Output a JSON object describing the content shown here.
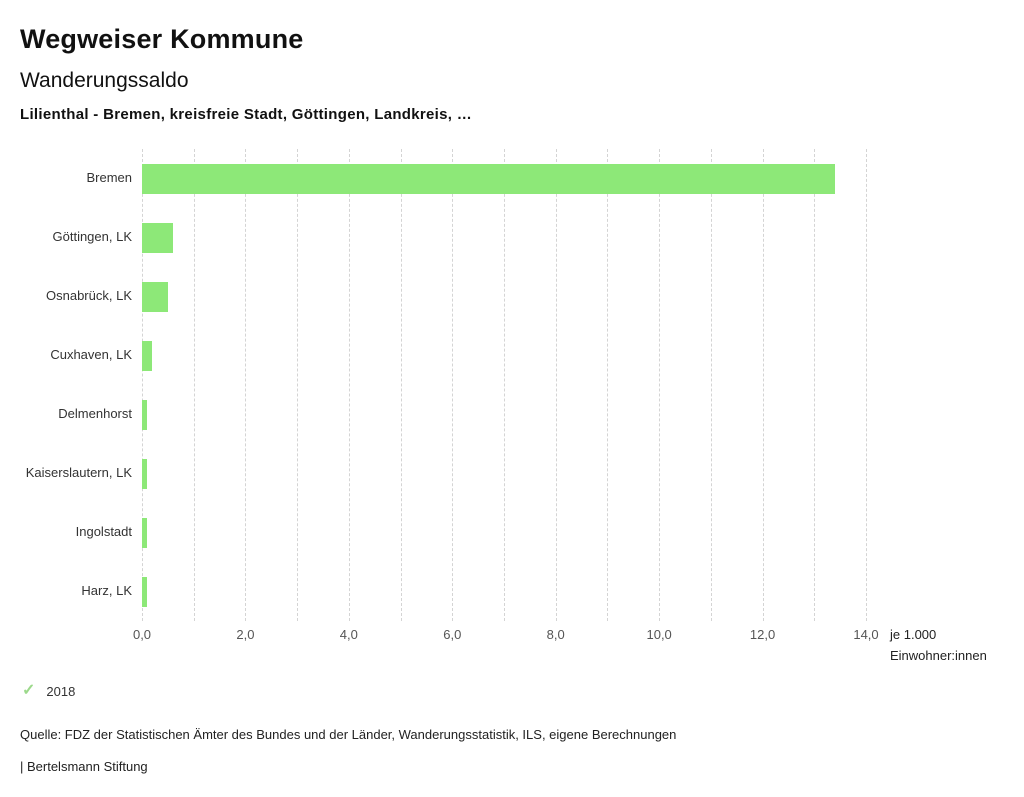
{
  "header": {
    "title": "Wegweiser Kommune",
    "subtitle": "Wanderungssaldo",
    "selection": "Lilienthal - Bremen, kreisfreie Stadt, Göttingen, Landkreis, …"
  },
  "chart_data": {
    "type": "bar",
    "orientation": "horizontal",
    "title": "Wanderungssaldo",
    "categories": [
      "Bremen",
      "Göttingen, LK",
      "Osnabrück, LK",
      "Cuxhaven, LK",
      "Delmenhorst",
      "Kaiserslautern, LK",
      "Ingolstadt",
      "Harz, LK"
    ],
    "values": [
      13.4,
      0.6,
      0.5,
      0.2,
      0.1,
      0.1,
      0.1,
      0.1
    ],
    "series_name": "2018",
    "xlim": [
      0,
      14
    ],
    "grid_step": 1,
    "tick_step": 2,
    "tick_labels": [
      "0,0",
      "2,0",
      "4,0",
      "6,0",
      "8,0",
      "10,0",
      "12,0",
      "14,0"
    ],
    "unit_label_line1": "je 1.000",
    "unit_label_line2": "Einwohner:innen",
    "bar_color": "#8DE878",
    "grid": true,
    "legend_position": "bottom-left"
  },
  "legend": {
    "check_icon": "✓",
    "year": "2018"
  },
  "footer": {
    "source": "Quelle: FDZ der Statistischen Ämter des Bundes und der Länder, Wanderungsstatistik, ILS, eigene Berechnungen",
    "branding": "| Bertelsmann Stiftung"
  }
}
